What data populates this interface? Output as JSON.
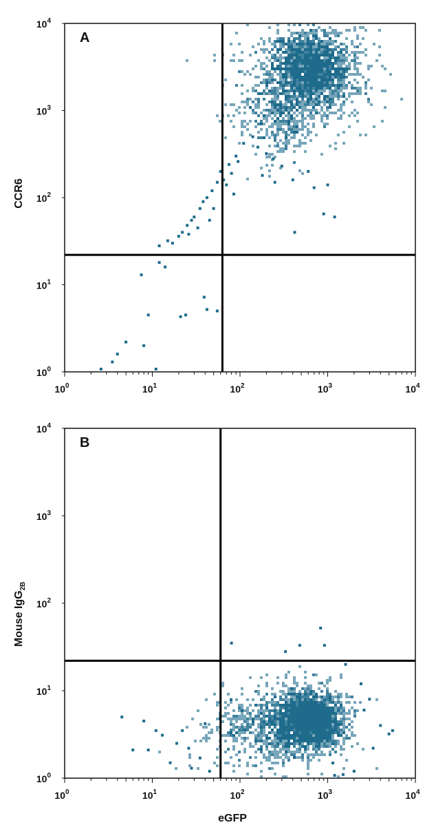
{
  "chart_data": [
    {
      "type": "scatter",
      "panel_label": "A",
      "xlabel": "",
      "ylabel": "CCR6",
      "x_scale": "log",
      "y_scale": "log",
      "xlim": [
        1,
        10000
      ],
      "ylim": [
        1,
        10000
      ],
      "x_ticks": [
        1,
        10,
        100,
        1000,
        10000
      ],
      "y_ticks": [
        1,
        10,
        100,
        1000,
        10000
      ],
      "tick_labels": [
        {
          "base": "10",
          "exp": "0"
        },
        {
          "base": "10",
          "exp": "1"
        },
        {
          "base": "10",
          "exp": "2"
        },
        {
          "base": "10",
          "exp": "3"
        },
        {
          "base": "10",
          "exp": "4"
        }
      ],
      "gate": {
        "x": 63,
        "y": 22
      },
      "point_color": "#1e6b8c",
      "clusters": [
        {
          "cx": 650,
          "cy": 3000,
          "sx": 0.22,
          "sy": 0.22,
          "n": 1700,
          "seed": 11
        },
        {
          "cx": 280,
          "cy": 900,
          "sx": 0.2,
          "sy": 0.24,
          "n": 380,
          "seed": 23
        },
        {
          "cx": 500,
          "cy": 2500,
          "sx": 0.42,
          "sy": 0.4,
          "n": 420,
          "seed": 37
        }
      ],
      "points": [
        [
          140,
          500
        ],
        [
          110,
          420
        ],
        [
          90,
          300
        ],
        [
          75,
          240
        ],
        [
          60,
          200
        ],
        [
          55,
          150
        ],
        [
          48,
          120
        ],
        [
          42,
          100
        ],
        [
          38,
          90
        ],
        [
          35,
          75
        ],
        [
          30,
          60
        ],
        [
          28,
          55
        ],
        [
          25,
          48
        ],
        [
          22,
          40
        ],
        [
          20,
          36
        ],
        [
          17,
          30
        ],
        [
          15,
          32
        ],
        [
          12,
          28
        ],
        [
          65,
          160
        ],
        [
          70,
          140
        ],
        [
          80,
          190
        ],
        [
          95,
          260
        ],
        [
          160,
          380
        ],
        [
          200,
          320
        ],
        [
          240,
          280
        ],
        [
          300,
          230
        ],
        [
          180,
          180
        ],
        [
          400,
          160
        ],
        [
          250,
          150
        ],
        [
          600,
          200
        ],
        [
          900,
          65
        ],
        [
          1200,
          60
        ],
        [
          420,
          40
        ],
        [
          1000,
          140
        ],
        [
          700,
          130
        ],
        [
          50,
          75
        ],
        [
          45,
          55
        ],
        [
          33,
          45
        ],
        [
          26,
          38
        ],
        [
          85,
          110
        ],
        [
          12,
          18
        ],
        [
          14,
          16
        ],
        [
          7.5,
          13
        ],
        [
          9,
          4.5
        ],
        [
          8,
          2
        ],
        [
          21,
          4.3
        ],
        [
          24,
          4.5
        ],
        [
          39,
          7.2
        ],
        [
          42,
          5.2
        ],
        [
          55,
          5
        ],
        [
          11,
          1
        ],
        [
          2.6,
          1.05
        ],
        [
          4,
          1.6
        ],
        [
          3.5,
          1.3
        ],
        [
          5,
          2.2
        ]
      ]
    },
    {
      "type": "scatter",
      "panel_label": "B",
      "xlabel": "eGFP",
      "ylabel": "Mouse IgG",
      "ylabel_sub": "2B",
      "x_scale": "log",
      "y_scale": "log",
      "xlim": [
        1,
        10000
      ],
      "ylim": [
        1,
        10000
      ],
      "x_ticks": [
        1,
        10,
        100,
        1000,
        10000
      ],
      "y_ticks": [
        1,
        10,
        100,
        1000,
        10000
      ],
      "tick_labels": [
        {
          "base": "10",
          "exp": "0"
        },
        {
          "base": "10",
          "exp": "1"
        },
        {
          "base": "10",
          "exp": "2"
        },
        {
          "base": "10",
          "exp": "3"
        },
        {
          "base": "10",
          "exp": "4"
        }
      ],
      "gate": {
        "x": 60,
        "y": 22
      },
      "point_color": "#1e6b8c",
      "clusters": [
        {
          "cx": 620,
          "cy": 4.5,
          "sx": 0.2,
          "sy": 0.17,
          "n": 1800,
          "seed": 51
        },
        {
          "cx": 300,
          "cy": 3.8,
          "sx": 0.32,
          "sy": 0.22,
          "n": 600,
          "seed": 67
        },
        {
          "cx": 120,
          "cy": 3.5,
          "sx": 0.32,
          "sy": 0.24,
          "n": 200,
          "seed": 79
        }
      ],
      "points": [
        [
          80,
          35
        ],
        [
          830,
          52
        ],
        [
          480,
          33
        ],
        [
          920,
          33
        ],
        [
          330,
          28
        ],
        [
          1600,
          20
        ],
        [
          4.5,
          5
        ],
        [
          8,
          4.5
        ],
        [
          6,
          2.1
        ],
        [
          9,
          2.1
        ],
        [
          11,
          3.5
        ],
        [
          13,
          3.1
        ],
        [
          19,
          2.5
        ],
        [
          22,
          3.5
        ],
        [
          16,
          1.5
        ],
        [
          26,
          2.2
        ],
        [
          28,
          1.3
        ],
        [
          35,
          1.7
        ],
        [
          40,
          4.2
        ],
        [
          45,
          1.2
        ],
        [
          4000,
          4
        ],
        [
          5000,
          3.2
        ],
        [
          3300,
          2.2
        ],
        [
          2600,
          6
        ],
        [
          3000,
          8
        ],
        [
          2400,
          12
        ],
        [
          2000,
          1.2
        ],
        [
          1500,
          1.1
        ],
        [
          1200,
          1.05
        ],
        [
          5500,
          3.5
        ]
      ]
    }
  ]
}
